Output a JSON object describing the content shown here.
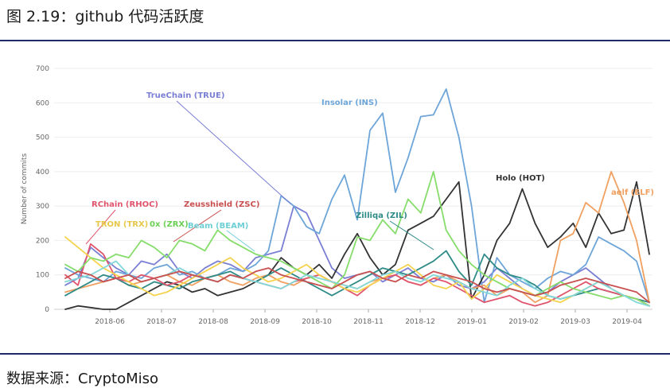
{
  "figure": {
    "title": "图 2.19：github 代码活跃度",
    "source": "数据来源：CryptoMiso"
  },
  "chart_data": {
    "type": "line",
    "ylabel": "Number of commits",
    "ylim": [
      0,
      700
    ],
    "yticks": [
      0,
      100,
      200,
      300,
      400,
      500,
      600,
      700
    ],
    "xtick_labels": [
      "2018-06",
      "2018-07",
      "2018-08",
      "2018-09",
      "2018-10",
      "2018-11",
      "2018-12",
      "2019-01",
      "2019-02",
      "2019-03",
      "2019-04"
    ],
    "x_weeks": 47,
    "series": [
      {
        "name": "TrueChain (TRUE)",
        "color": "#7b7fd4",
        "values": [
          70,
          90,
          180,
          150,
          120,
          100,
          140,
          130,
          160,
          110,
          90,
          120,
          140,
          130,
          110,
          150,
          160,
          170,
          300,
          280,
          200,
          120,
          90,
          100,
          110,
          80,
          100,
          120,
          90,
          80,
          100,
          70,
          60,
          80,
          120,
          90,
          60,
          40,
          50,
          80,
          100,
          120,
          90,
          60,
          40,
          30,
          10
        ]
      },
      {
        "name": "Insolar (INS)",
        "color": "#6ea5d8",
        "values": [
          120,
          100,
          90,
          80,
          110,
          100,
          90,
          120,
          130,
          100,
          110,
          90,
          100,
          120,
          110,
          130,
          170,
          330,
          300,
          240,
          220,
          320,
          390,
          260,
          520,
          570,
          340,
          440,
          560,
          565,
          640,
          500,
          300,
          20,
          150,
          100,
          80,
          60,
          90,
          110,
          100,
          130,
          210,
          190,
          170,
          140,
          20
        ]
      },
      {
        "name": "Holo (HOT)",
        "color": "#333333",
        "values": [
          0,
          10,
          5,
          0,
          0,
          20,
          40,
          60,
          80,
          70,
          50,
          60,
          40,
          50,
          60,
          80,
          100,
          150,
          120,
          100,
          130,
          90,
          160,
          220,
          150,
          100,
          130,
          230,
          250,
          270,
          320,
          370,
          30,
          100,
          200,
          250,
          350,
          250,
          180,
          210,
          250,
          180,
          280,
          220,
          230,
          370,
          160
        ]
      },
      {
        "name": "aelf (ELF)",
        "color": "#f0a060",
        "values": [
          50,
          60,
          70,
          80,
          90,
          70,
          80,
          90,
          100,
          80,
          70,
          90,
          100,
          80,
          70,
          90,
          100,
          80,
          70,
          90,
          100,
          80,
          70,
          60,
          80,
          90,
          100,
          80,
          70,
          90,
          100,
          80,
          60,
          70,
          40,
          60,
          50,
          20,
          40,
          200,
          220,
          310,
          280,
          400,
          310,
          200,
          20
        ]
      },
      {
        "name": "Zilliqa (ZIL)",
        "color": "#2e8b87",
        "values": [
          40,
          60,
          80,
          100,
          90,
          70,
          60,
          80,
          70,
          60,
          80,
          90,
          100,
          110,
          90,
          80,
          100,
          120,
          100,
          80,
          60,
          40,
          60,
          80,
          100,
          120,
          110,
          100,
          120,
          140,
          170,
          110,
          70,
          160,
          120,
          100,
          90,
          70,
          40,
          30,
          40,
          50,
          60,
          50,
          40,
          30,
          20
        ]
      },
      {
        "name": "RChain (RHOC)",
        "color": "#e0556d",
        "values": [
          100,
          70,
          190,
          160,
          90,
          80,
          100,
          90,
          70,
          80,
          100,
          90,
          80,
          100,
          90,
          80,
          70,
          60,
          80,
          90,
          100,
          80,
          60,
          40,
          70,
          90,
          100,
          80,
          70,
          90,
          80,
          60,
          40,
          20,
          30,
          40,
          20,
          10,
          20,
          40,
          60,
          80,
          60,
          50,
          40,
          30,
          10
        ]
      },
      {
        "name": "TRON (TRX)",
        "color": "#f5d34f",
        "values": [
          210,
          180,
          150,
          120,
          100,
          80,
          60,
          40,
          50,
          70,
          90,
          110,
          130,
          150,
          120,
          100,
          80,
          90,
          110,
          130,
          100,
          80,
          60,
          50,
          70,
          90,
          110,
          130,
          100,
          70,
          60,
          80,
          30,
          60,
          100,
          80,
          60,
          40,
          30,
          20,
          40,
          60,
          80,
          60,
          40,
          30,
          10
        ]
      },
      {
        "name": "0x (ZRX)",
        "color": "#86dd6b",
        "values": [
          130,
          110,
          150,
          140,
          160,
          150,
          200,
          180,
          150,
          200,
          190,
          170,
          230,
          200,
          180,
          160,
          150,
          140,
          120,
          100,
          80,
          60,
          100,
          210,
          200,
          260,
          220,
          320,
          280,
          400,
          230,
          170,
          130,
          100,
          80,
          60,
          50,
          40,
          60,
          80,
          60,
          50,
          40,
          30,
          40,
          30,
          10
        ]
      },
      {
        "name": "Beam (BEAM)",
        "color": "#82d8d8",
        "values": [
          80,
          90,
          100,
          120,
          140,
          100,
          80,
          90,
          100,
          120,
          100,
          90,
          80,
          100,
          90,
          80,
          70,
          60,
          80,
          100,
          90,
          80,
          70,
          60,
          80,
          100,
          110,
          90,
          80,
          100,
          90,
          80,
          60,
          50,
          40,
          70,
          90,
          60,
          40,
          30,
          40,
          60,
          80,
          60,
          40,
          20,
          10
        ]
      },
      {
        "name": "Zeusshield (ZSC)",
        "color": "#c85050",
        "values": [
          90,
          110,
          100,
          80,
          90,
          100,
          80,
          90,
          100,
          110,
          100,
          90,
          80,
          100,
          90,
          110,
          120,
          100,
          90,
          80,
          70,
          60,
          80,
          100,
          110,
          90,
          80,
          100,
          90,
          110,
          100,
          90,
          80,
          60,
          50,
          60,
          50,
          40,
          50,
          70,
          80,
          90,
          80,
          70,
          60,
          50,
          20
        ]
      }
    ],
    "annotations": [
      {
        "text": "TrueChain (TRUE)",
        "color": "#7b7fd4"
      },
      {
        "text": "Insolar (INS)",
        "color": "#6ea5d8"
      },
      {
        "text": "Holo (HOT)",
        "color": "#333333"
      },
      {
        "text": "aelf (ELF)",
        "color": "#f0a060"
      },
      {
        "text": "Zilliqa (ZIL)",
        "color": "#2e8b87"
      },
      {
        "text": "RChain (RHOC)",
        "color": "#e0556d"
      },
      {
        "text": "Zeusshield (ZSC)",
        "color": "#c85050"
      },
      {
        "text": "TRON (TRX)",
        "color": "#e6c84a"
      },
      {
        "text": "0x (ZRX)",
        "color": "#6ccf55"
      },
      {
        "text": "Beam (BEAM)",
        "color": "#6fcfd6"
      }
    ]
  }
}
